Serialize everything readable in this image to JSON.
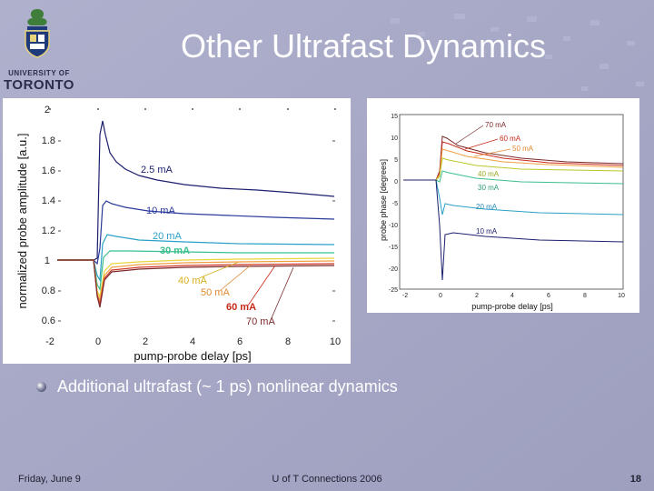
{
  "logo": {
    "line1": "UNIVERSITY OF",
    "line2": "TORONTO"
  },
  "slide": {
    "title": "Other Ultrafast Dynamics"
  },
  "bullets": [
    "Additional ultrafast (~ 1 ps) nonlinear dynamics"
  ],
  "footer": {
    "date": "Friday, June 9",
    "center": "U of T Connections 2006",
    "page": "18"
  },
  "colors": {
    "title": "#ffffff",
    "background": "#a7a8c6"
  },
  "left_chart": {
    "xlabel": "pump-probe delay [ps]",
    "ylabel": "normalized probe amplitude [a.u.]",
    "yticks": [
      "2",
      "1.8",
      "1.6",
      "1.4",
      "1.2",
      "1",
      "0.8",
      "0.6"
    ],
    "xticks": [
      "-2",
      "0",
      "2",
      "4",
      "6",
      "8",
      "10"
    ],
    "labels": {
      "c25": "2.5 mA",
      "c10": "10 mA",
      "c20": "20 mA",
      "c30": "30 mA",
      "c40": "40 mA",
      "c50": "50 mA",
      "c60": "60 mA",
      "c70": "70 mA"
    }
  },
  "right_chart": {
    "xlabel": "pump-probe delay [ps]",
    "ylabel": "probe phase [degrees]",
    "yticks": [
      "15",
      "10",
      "5",
      "0",
      "-5",
      "-10",
      "-15",
      "-20",
      "-25"
    ],
    "xticks": [
      "-2",
      "0",
      "2",
      "4",
      "6",
      "8",
      "10"
    ],
    "labels": {
      "c70": "70 mA",
      "c60": "60 mA",
      "c50": "50 mA",
      "c40": "40 mA",
      "c30": "30 mA",
      "c20": "20 mA",
      "c10": "10 mA"
    }
  }
}
